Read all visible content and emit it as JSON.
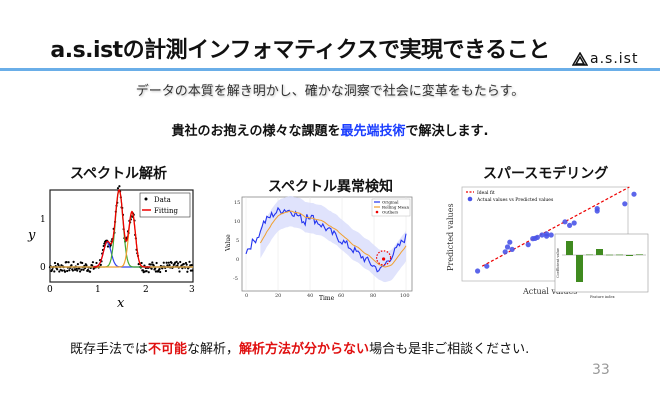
{
  "header": {
    "title": "a.s.istの計測インフォマティクスで実現できること",
    "logo_text": "a.s.ist"
  },
  "subtitle": "データの本質を解き明かし、確かな洞察で社会に変革をもたらす。",
  "message": {
    "before": "貴社のお抱えの様々な課題を",
    "highlight": "最先端技術",
    "after": "で解決します."
  },
  "sections": [
    {
      "label": "スペクトル解析",
      "figure": {
        "legend": [
          "Data",
          "Fitting"
        ],
        "xlabel": "x",
        "ylabel": "y",
        "xticks": [
          "0",
          "1",
          "2",
          "3"
        ],
        "yticks": [
          "0",
          "1"
        ]
      }
    },
    {
      "label": "スペクトル異常検知",
      "figure": {
        "legend": [
          "Original",
          "Rolling Mean",
          "Outliers"
        ],
        "xlabel": "Time",
        "ylabel": "Value",
        "xticks": [
          "0",
          "20",
          "40",
          "60",
          "80",
          "100"
        ],
        "yticks": [
          "15",
          "10",
          "5",
          "0",
          "-5"
        ]
      }
    },
    {
      "label": "スパースモデリング",
      "figure": {
        "legend": [
          "Ideal fit",
          "Actual values vs Predicted values"
        ],
        "xlabel": "Actual values",
        "ylabel": "Predicted values",
        "inset_xlabel": "Feature index",
        "inset_ylabel": "Coefficient value"
      }
    }
  ],
  "bottom": {
    "p1": "既存手法では",
    "r1": "不可能",
    "p2": "な解析，",
    "r2": "解析方法が分からない",
    "p3": "場合も是非ご相談ください."
  },
  "page_number": "33",
  "colors": {
    "accent_rule": "#6aaee8",
    "highlight_blue": "#1a3dff",
    "highlight_red": "#e01010"
  }
}
